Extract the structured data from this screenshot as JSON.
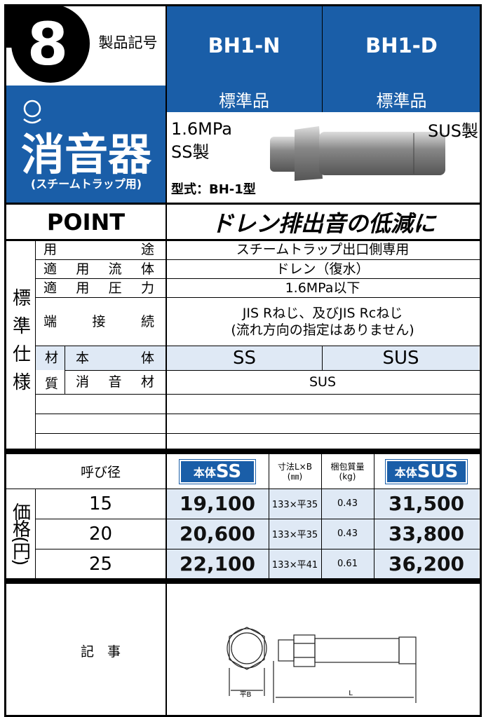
{
  "header": {
    "number": "8",
    "label": "製品記号",
    "models": [
      "BH1-N",
      "BH1-D"
    ],
    "grades": [
      "標準品",
      "標準品"
    ]
  },
  "product": {
    "category": "消音器",
    "category_sub": "(スチームトラップ用)",
    "pressure": "1.6MPa",
    "material_left": "SS製",
    "material_right": "SUS製",
    "model": "型式：BH-1型"
  },
  "point": {
    "label": "POINT",
    "text": "ドレン排出音の低減に"
  },
  "spec": {
    "title": "標準仕様",
    "rows": [
      [
        "用途",
        "スチームトラップ出口側専用"
      ],
      [
        "適用流体",
        "ドレン（復水）"
      ],
      [
        "適用圧力",
        "1.6MPa以下"
      ],
      [
        "端接続",
        "JIS Rねじ、及びJIS Rcねじ\n(流れ方向の指定はありません)"
      ]
    ],
    "material": {
      "label": "材質",
      "body_label": "本体",
      "body_values": [
        "SS",
        "SUS"
      ],
      "silencer_label": "消音材",
      "silencer_value": "SUS"
    }
  },
  "price": {
    "title": "価格(円)",
    "headers": {
      "size": "呼び径",
      "ss_prefix": "本体",
      "ss": "SS",
      "dims": "寸法L×B\n(㎜)",
      "weight": "梱包質量\n(kg)",
      "sus_prefix": "本体",
      "sus": "SUS"
    },
    "rows": [
      [
        15,
        "19,100",
        "133×平35",
        0.43,
        "31,500"
      ],
      [
        20,
        "20,600",
        "133×平35",
        0.43,
        "33,800"
      ],
      [
        25,
        "22,100",
        "133×平41",
        0.61,
        "36,200"
      ]
    ]
  },
  "notes": {
    "label": "記　事",
    "drawing": {
      "width_label": "平B",
      "length_label": "L"
    }
  }
}
